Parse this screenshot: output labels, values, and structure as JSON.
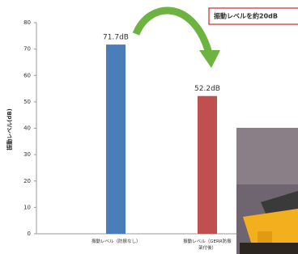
{
  "chart_data": {
    "type": "bar",
    "y_label": "振動レベル(dB)",
    "annotation": "振動レベルを約20dB",
    "categories": [
      "振動レベル（防振なし）",
      "振動レベル（GERR防振架付後）"
    ],
    "values": [
      71.7,
      52.2
    ],
    "value_labels": [
      "71.7dB",
      "52.2dB"
    ],
    "colors": [
      "#4a7ebb",
      "#c0504d"
    ],
    "ylim": [
      0,
      80
    ],
    "yticks": [
      0,
      10,
      20,
      30,
      40,
      50,
      60,
      70,
      80
    ],
    "grid": false
  }
}
